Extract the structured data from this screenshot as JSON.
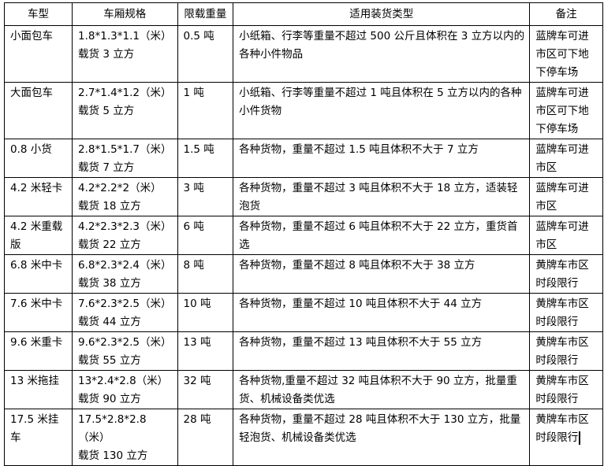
{
  "table": {
    "headers": [
      "车型",
      "车厢规格",
      "限载重量",
      "适用装货类型",
      "备注"
    ],
    "rows": [
      {
        "type": "小面包车",
        "spec": "1.8*1.3*1.1（米）",
        "volume": "载货 3 立方",
        "load": "0.5 吨",
        "cargo": "小纸箱、行李等重量不超过 500 公斤且体积在 3 立方以内的各种小件物品",
        "note": "蓝牌车可进市区可下地下停车场"
      },
      {
        "type": "大面包车",
        "spec": "2.7*1.4*1.2（米）",
        "volume": "载货 5 立方",
        "load": "1 吨",
        "cargo": "小纸箱、行李等重量不超过 1 吨且体积在 5 立方以内的各种小件货物",
        "note": "蓝牌车可进市区可下地下停车场"
      },
      {
        "type": "0.8 小货",
        "spec": "2.8*1.5*1.7（米）",
        "volume": "载货 7 立方",
        "load": "1.5 吨",
        "cargo": "各种货物，重量不超过 1.5 吨且体积不大于 7 立方",
        "note": "蓝牌车可进市区"
      },
      {
        "type": "4.2 米轻卡",
        "spec": "4.2*2.2*2（米）",
        "volume": "载货 18 立方",
        "load": "3 吨",
        "cargo": "各种货物，重量不超过 3 吨且体积不大于 18 立方，适装轻泡货",
        "note": "蓝牌车可进市区"
      },
      {
        "type": "4.2 米重载版",
        "spec": "4.2*2.3*2.3（米）",
        "volume": "载货 22 立方",
        "load": "6 吨",
        "cargo": "各种货物，重量不超过 6 吨且体积不大于 22 立方，重货首选",
        "note": "蓝牌车可进市区"
      },
      {
        "type": "6.8 米中卡",
        "spec": "6.8*2.3*2.4（米）",
        "volume": "载货 38 立方",
        "load": "8 吨",
        "cargo": "各种货物，重量不超过 8 吨且体积不大于 38 立方",
        "note": "黄牌车市区时段限行"
      },
      {
        "type": "7.6 米中卡",
        "spec": "7.6*2.3*2.5（米）",
        "volume": "载货 44 立方",
        "load": "10 吨",
        "cargo": "各种货物，重量不超过 10 吨且体积不大于 44 立方",
        "note": "黄牌车市区时段限行"
      },
      {
        "type": "9.6 米重卡",
        "spec": "9.6*2.3*2.5（米）",
        "volume": "载货 55 立方",
        "load": "13 吨",
        "cargo": "各种货物，重量不超过 13 吨且体积不大于 55 立方",
        "note": "黄牌车市区时段限行"
      },
      {
        "type": "13 米拖挂",
        "spec": "13*2.4*2.8（米）",
        "volume": "载货 90 立方",
        "load": "32 吨",
        "cargo": "各种货物,重量不超过 32 吨且体积不大于 90 立方，批量重货、机械设备类优选",
        "note": "黄牌车市区时段限行"
      },
      {
        "type": "17.5 米挂车",
        "spec": "17.5*2.8*2.8（米）",
        "volume": "载货 130 立方",
        "load": "28 吨",
        "cargo": "各种货物，重量不超过 28 吨且体积不大于 130 立方，批量轻泡货、机械设备类优选",
        "note": "黄牌车市区时段限行"
      }
    ]
  }
}
